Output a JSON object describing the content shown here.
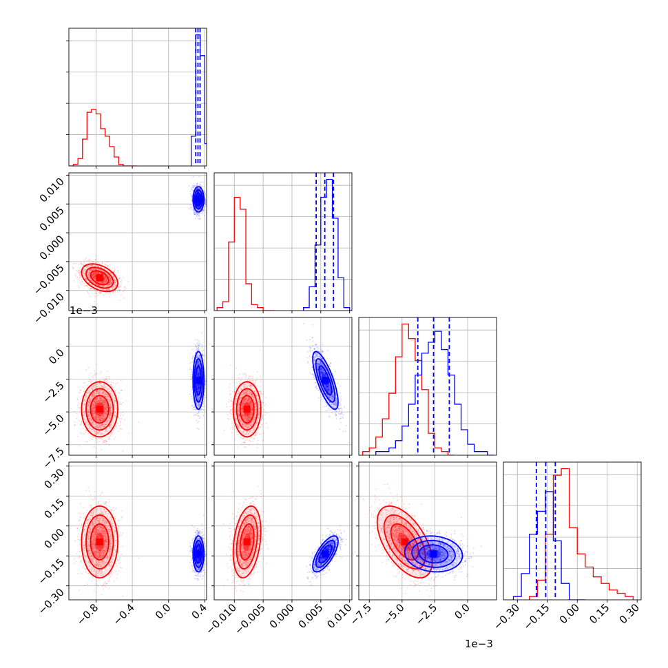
{
  "chart_data": {
    "type": "corner",
    "title": "",
    "parameters": [
      {
        "xlim": [
          -1.1,
          0.42
        ],
        "ticks": [
          -0.8,
          -0.4,
          0.0,
          0.4
        ],
        "tick_labels": [
          "−0.8",
          "−0.4",
          "0.0",
          "0.4"
        ]
      },
      {
        "xlim": [
          -0.0135,
          0.0104
        ],
        "ticks": [
          -0.01,
          -0.005,
          0.0,
          0.005,
          0.01
        ],
        "tick_labels": [
          "−0.010",
          "−0.005",
          "0.000",
          "0.005",
          "0.010"
        ]
      },
      {
        "xlim": [
          -8.3,
          2.2
        ],
        "ticks": [
          -7.5,
          -5.0,
          -2.5,
          0.0
        ],
        "tick_labels": [
          "−7.5",
          "−5.0",
          "−2.5",
          "0.0"
        ],
        "offset_label": "1e−3"
      },
      {
        "xlim": [
          -0.37,
          0.32
        ],
        "ticks": [
          -0.3,
          -0.15,
          0.0,
          0.15,
          0.3
        ],
        "tick_labels": [
          "−0.30",
          "−0.15",
          "0.00",
          "0.15",
          "0.30"
        ]
      }
    ],
    "series": [
      {
        "color": "#ff0000",
        "means": [
          -0.76,
          -0.0078,
          -4.8,
          -0.08
        ],
        "sds": [
          0.1,
          0.0012,
          1.05,
          0.09
        ],
        "correlations": {
          "1-0": -0.4,
          "2-0": 0.0,
          "2-1": 0.0,
          "3-0": 0.0,
          "3-1": 0.3,
          "3-2": -0.55
        },
        "histograms": [
          {
            "edges": [
              -1.1,
              -1.05,
              -1.0,
              -0.95,
              -0.9,
              -0.85,
              -0.8,
              -0.75,
              -0.7,
              -0.65,
              -0.6,
              -0.55,
              -0.5,
              -0.45,
              -0.4,
              -0.35
            ],
            "counts": [
              0,
              1,
              5,
              18,
              36,
              38,
              35,
              25,
              20,
              13,
              6,
              1,
              0,
              0,
              0
            ]
          },
          {
            "edges": [
              -0.013,
              -0.012,
              -0.011,
              -0.01,
              -0.009,
              -0.008,
              -0.007,
              -0.006,
              -0.005,
              -0.004,
              -0.003
            ],
            "counts": [
              1,
              3,
              23,
              38,
              34,
              9,
              2,
              1,
              0,
              0
            ]
          },
          {
            "edges": [
              -8.0,
              -7.5,
              -7.0,
              -6.5,
              -6.0,
              -5.5,
              -5.0,
              -4.5,
              -4.0,
              -3.5,
              -3.0,
              -2.5,
              -2.0,
              -1.5,
              -1.0
            ],
            "counts": [
              1,
              2,
              5,
              10,
              17,
              27,
              36,
              32,
              26,
              18,
              6,
              2,
              1,
              0
            ]
          },
          {
            "edges": [
              -0.24,
              -0.2,
              -0.16,
              -0.12,
              -0.08,
              -0.04,
              0.0,
              0.04,
              0.08,
              0.12,
              0.16,
              0.2,
              0.24,
              0.28
            ],
            "counts": [
              1,
              6,
              20,
              38,
              40,
              22,
              14,
              10,
              7,
              5,
              3,
              2,
              1
            ]
          }
        ]
      },
      {
        "color": "#0000ff",
        "means": [
          0.33,
          0.0058,
          -2.6,
          -0.14
        ],
        "sds": [
          0.03,
          0.0011,
          1.1,
          0.045
        ],
        "correlations": {
          "1-0": 0.0,
          "2-0": 0.0,
          "2-1": -0.75,
          "3-0": 0.0,
          "3-1": 0.7,
          "3-2": -0.1
        },
        "histograms": [
          {
            "edges": [
              0.25,
              0.3,
              0.35,
              0.4,
              0.45
            ],
            "counts": [
              20,
              88,
              74,
              15
            ]
          },
          {
            "edges": [
              0.002,
              0.003,
              0.004,
              0.005,
              0.006,
              0.007,
              0.008,
              0.009,
              0.01,
              0.011
            ],
            "counts": [
              1,
              8,
              22,
              38,
              44,
              31,
              11,
              1,
              0
            ]
          },
          {
            "edges": [
              -7.0,
              -6.5,
              -6.0,
              -5.5,
              -5.0,
              -4.5,
              -4.0,
              -3.5,
              -3.0,
              -2.5,
              -2.0,
              -1.5,
              -1.0,
              -0.5,
              0.0,
              0.5,
              1.0,
              1.5,
              2.0
            ],
            "counts": [
              1,
              1,
              2,
              4,
              8,
              14,
              22,
              28,
              31,
              34,
              29,
              22,
              14,
              7,
              3,
              1,
              1,
              0
            ]
          },
          {
            "edges": [
              -0.32,
              -0.28,
              -0.24,
              -0.2,
              -0.16,
              -0.12,
              -0.08,
              -0.04,
              0.0,
              0.04
            ],
            "counts": [
              1,
              8,
              20,
              27,
              33,
              18,
              5,
              0,
              0
            ]
          }
        ],
        "quantiles": [
          [
            0.3,
            0.325,
            0.348
          ],
          [
            0.0042,
            0.0057,
            0.0072
          ],
          [
            -3.8,
            -2.6,
            -1.4
          ],
          [
            -0.205,
            -0.158,
            -0.11
          ]
        ]
      }
    ]
  }
}
